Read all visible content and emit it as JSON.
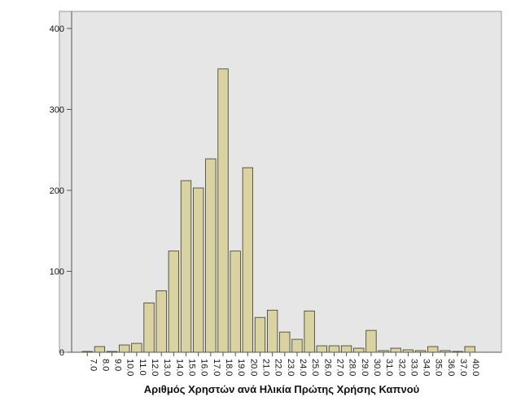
{
  "chart_data": {
    "type": "bar",
    "title": "",
    "xlabel": "Αριθμός Χρηστών ανά Ηλικία Πρώτης Χρήσης Καπνού",
    "ylabel": "",
    "ylim": [
      0,
      400
    ],
    "yticks": [
      0,
      100,
      200,
      300,
      400
    ],
    "ytick_labels": [
      "0",
      "100",
      "200",
      "300",
      "400"
    ],
    "grid": false,
    "colors": {
      "bar_fill": "#d8d3a0",
      "bar_stroke": "#3a3a2a",
      "plot_background": "#e6e6e6",
      "axis": "#555555"
    },
    "categories": [
      "7.0",
      "8.0",
      "9.0",
      "10.0",
      "11.0",
      "12.0",
      "13.0",
      "14.0",
      "15.0",
      "16.0",
      "17.0",
      "18.0",
      "19.0",
      "20.0",
      "21.0",
      "22.0",
      "23.0",
      "24.0",
      "25.0",
      "26.0",
      "27.0",
      "28.0",
      "29.0",
      "30.0",
      "31.0",
      "32.0",
      "33.0",
      "34.0",
      "35.0",
      "36.0",
      "37.0",
      "40.0"
    ],
    "values": [
      1,
      7,
      1,
      9,
      11,
      61,
      76,
      125,
      212,
      203,
      239,
      350,
      125,
      228,
      43,
      52,
      25,
      16,
      51,
      8,
      8,
      8,
      5,
      27,
      2,
      5,
      3,
      2,
      7,
      2,
      1,
      7
    ]
  }
}
